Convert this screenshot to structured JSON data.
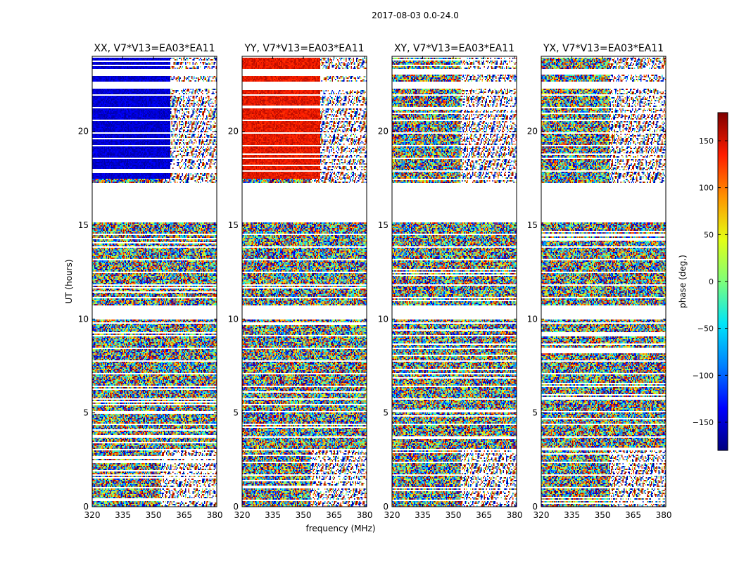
{
  "figure_title": "2017-08-03 0.0-24.0",
  "chart_data": {
    "type": "heatmap",
    "suptitle": "2017-08-03 0.0-24.0",
    "xlabel": "frequency (MHz)",
    "ylabel": "UT (hours)",
    "xlim": [
      320,
      381
    ],
    "ylim": [
      0,
      24
    ],
    "xticks": [
      320,
      335,
      350,
      365,
      380
    ],
    "yticks": [
      0,
      5,
      10,
      15,
      20
    ],
    "colorbar": {
      "label": "phase (deg.)",
      "range": [
        -180,
        180
      ],
      "ticks": [
        -150,
        -100,
        -50,
        0,
        50,
        100,
        150
      ],
      "tick_labels": [
        "−150",
        "−100",
        "−50",
        "0",
        "50",
        "100",
        "150"
      ],
      "colormap": [
        "#00007f",
        "#0000ff",
        "#0080ff",
        "#00e5f8",
        "#7dff7a",
        "#e4ff13",
        "#ff9400",
        "#ff1d00",
        "#7f0000"
      ]
    },
    "panels": [
      {
        "title": "XX, V7*V13=EA03*EA11",
        "polarization": "XX"
      },
      {
        "title": "YY, V7*V13=EA03*EA11",
        "polarization": "YY"
      },
      {
        "title": "XY, V7*V13=EA03*EA11",
        "polarization": "XY"
      },
      {
        "title": "YX, V7*V13=EA03*EA11",
        "polarization": "YX"
      }
    ],
    "data_gaps_ut": [
      [
        16.5,
        17.2
      ],
      [
        15.2,
        16.5
      ],
      [
        10.0,
        10.7
      ],
      [
        23.0,
        23.3
      ],
      [
        22.3,
        22.6
      ]
    ]
  }
}
